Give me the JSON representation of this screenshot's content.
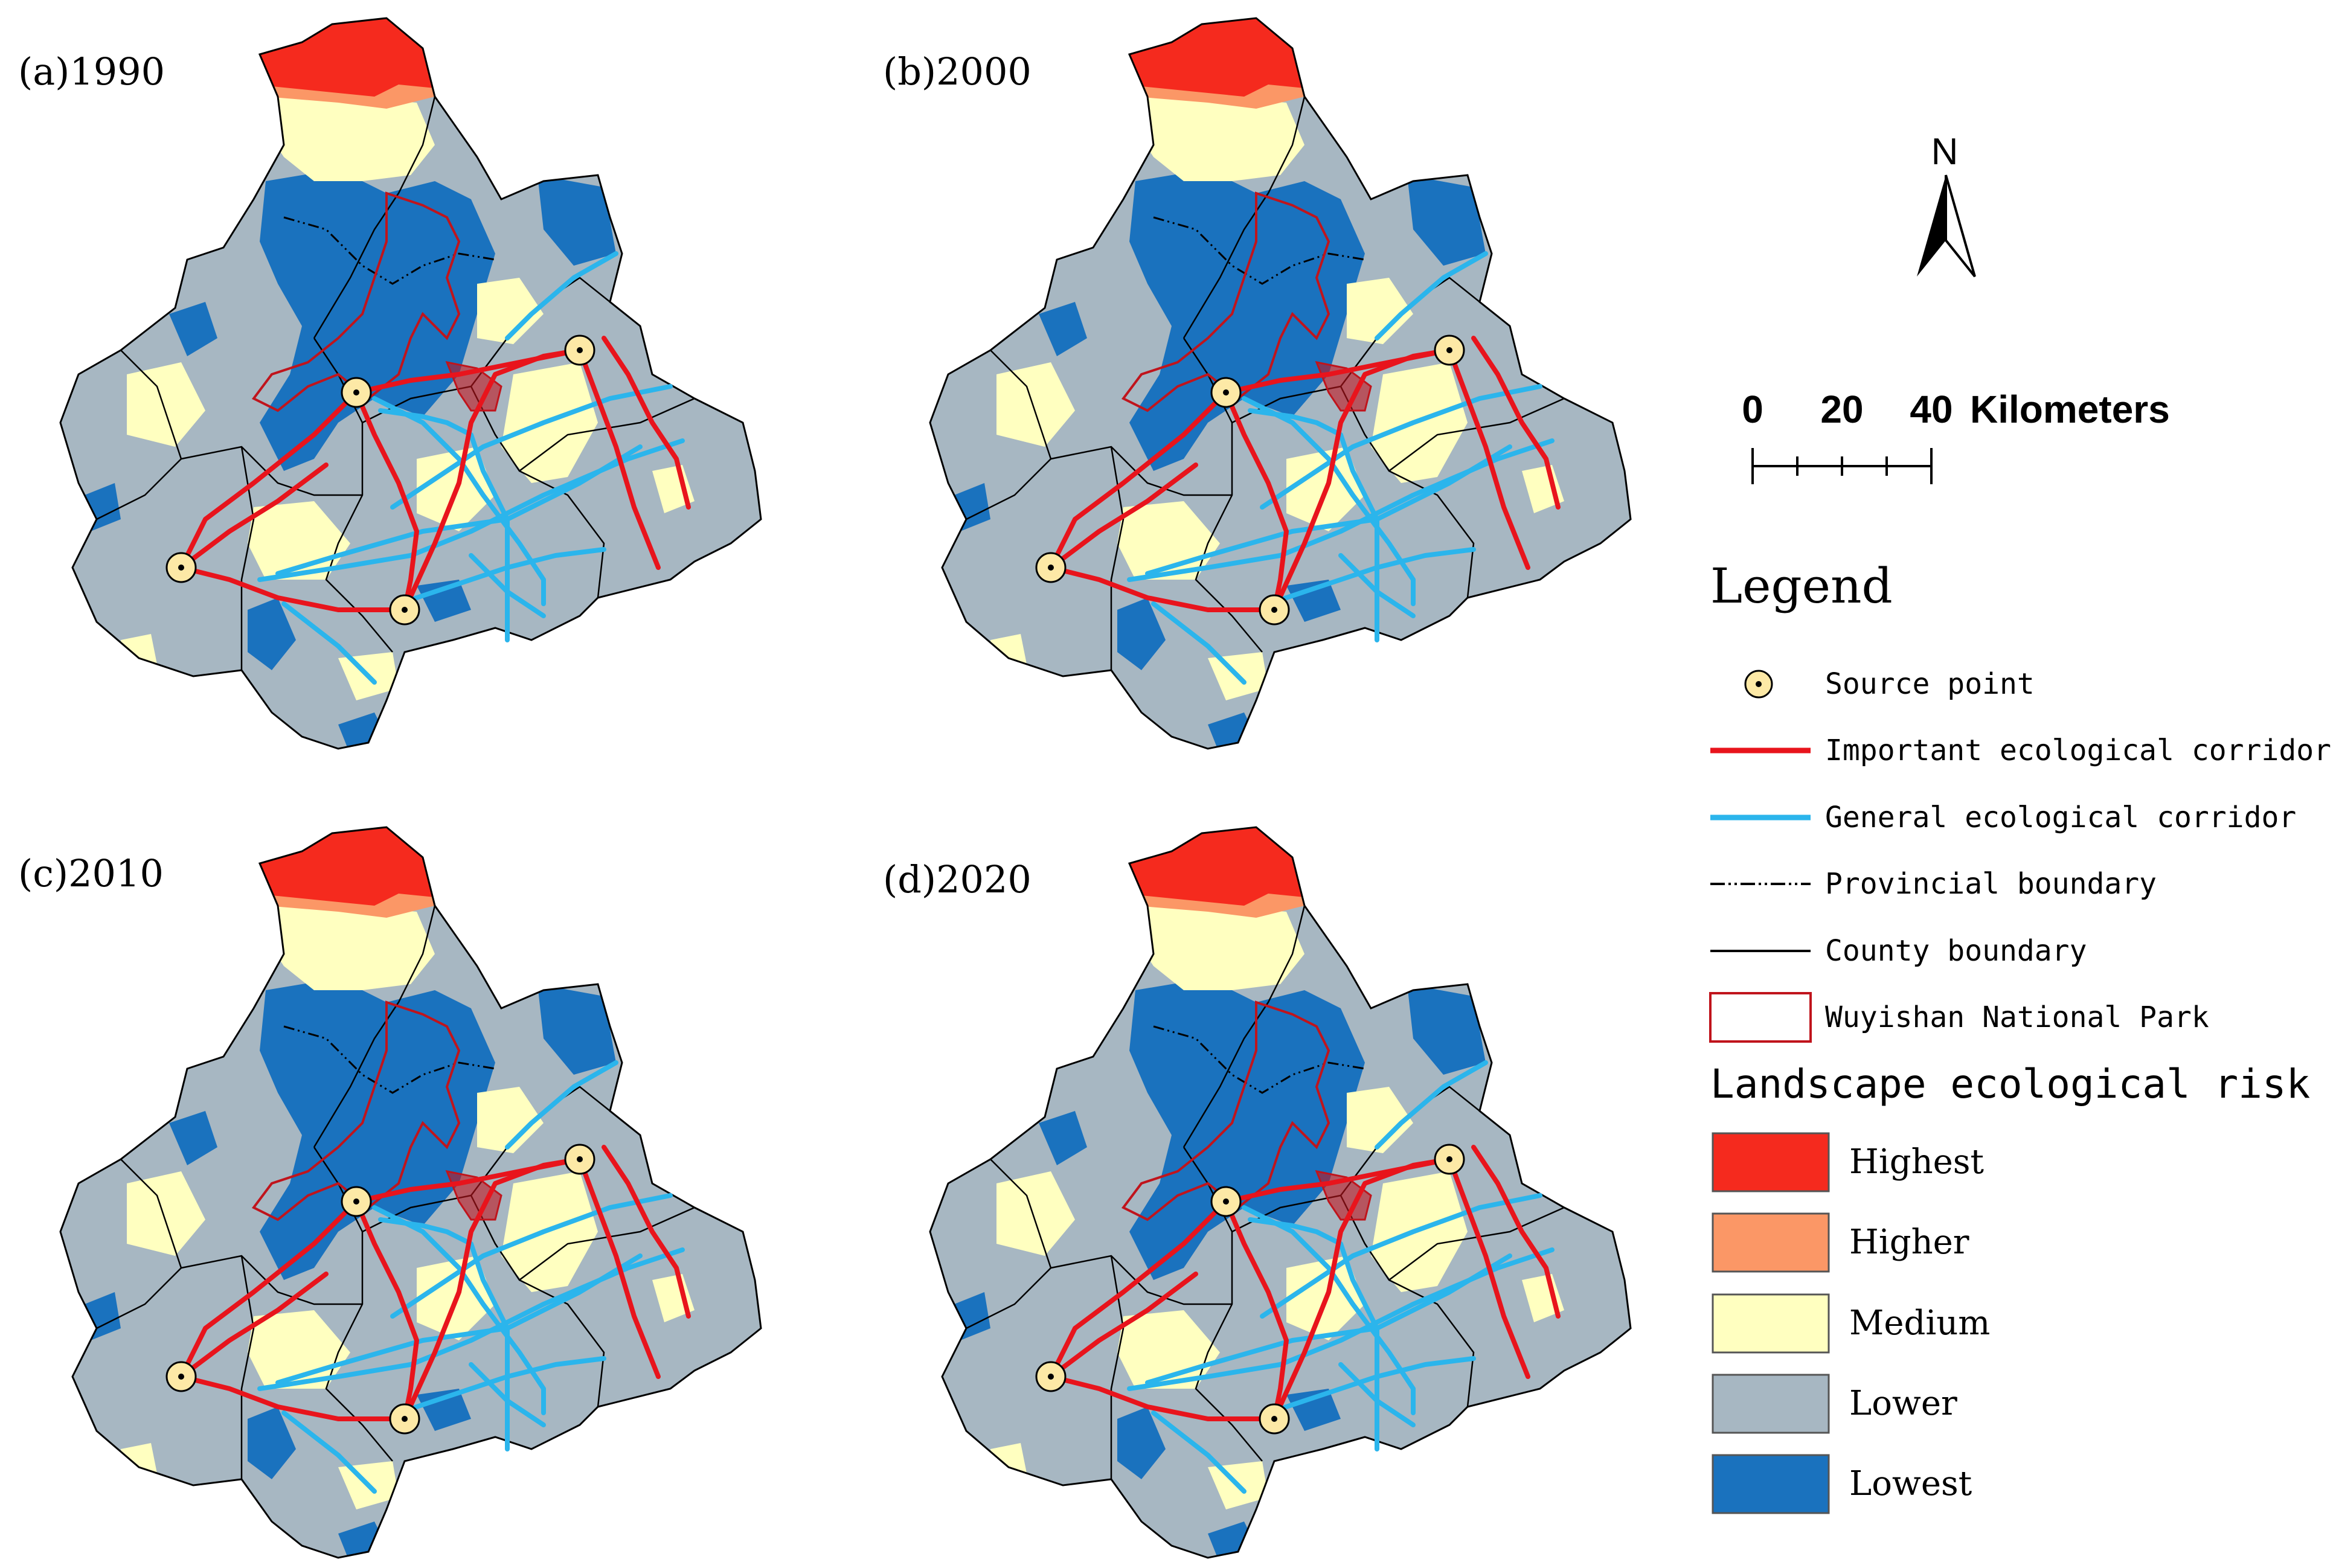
{
  "panels": [
    {
      "label": "(a)1990"
    },
    {
      "label": "(b)2000"
    },
    {
      "label": "(c)2010"
    },
    {
      "label": "(d)2020"
    }
  ],
  "north_arrow": {
    "letter": "N"
  },
  "scale_bar": {
    "ticks": [
      "0",
      "20",
      "40"
    ],
    "unit": "Kilometers"
  },
  "legend": {
    "title": "Legend",
    "items": [
      {
        "label": "Source point",
        "symbol": "source-point"
      },
      {
        "label": "Important ecological corridor",
        "symbol": "line",
        "color": "#e8141c"
      },
      {
        "label": "General ecological corridor",
        "symbol": "line",
        "color": "#2bb5ec"
      },
      {
        "label": "Provincial boundary",
        "symbol": "dashdot",
        "color": "#000000"
      },
      {
        "label": "County boundary",
        "symbol": "line",
        "color": "#000000"
      },
      {
        "label": "Wuyishan National Park",
        "symbol": "outline-box",
        "color": "#c0141c"
      }
    ],
    "risk_title": "Landscape ecological risk",
    "risk_classes": [
      {
        "label": "Highest",
        "color": "#f52a1e"
      },
      {
        "label": "Higher",
        "color": "#fb9766"
      },
      {
        "label": "Medium",
        "color": "#ffffc0"
      },
      {
        "label": "Lower",
        "color": "#a7b7c2"
      },
      {
        "label": "Lowest",
        "color": "#1a72be"
      }
    ]
  }
}
